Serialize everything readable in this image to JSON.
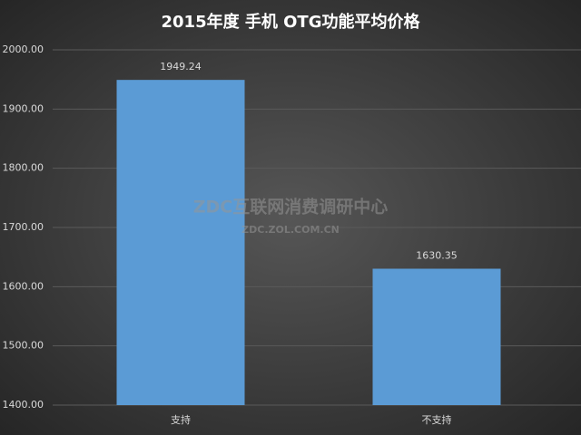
{
  "chart_data": {
    "type": "bar",
    "title": "2015年度 手机 OTG功能平均价格",
    "categories": [
      "支持",
      "不支持"
    ],
    "values": [
      1949.24,
      1630.35
    ],
    "color": "#5b9bd5",
    "ylim": [
      1400,
      2000
    ],
    "yticks": [
      {
        "value": 1400,
        "label": "1400.00"
      },
      {
        "value": 1500,
        "label": "1500.00"
      },
      {
        "value": 1600,
        "label": "1600.00"
      },
      {
        "value": 1700,
        "label": "1700.00"
      },
      {
        "value": 1800,
        "label": "1800.00"
      },
      {
        "value": 1900,
        "label": "1900.00"
      },
      {
        "value": 2000,
        "label": "2000.00"
      }
    ],
    "grid": true,
    "data_labels": true,
    "watermark": "ZDC互联网消费调研中心",
    "watermark_url": "ZDC.ZOL.COM.CN"
  }
}
